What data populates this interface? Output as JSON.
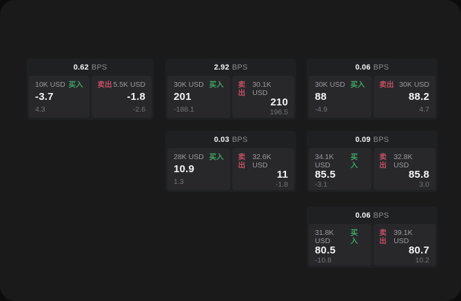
{
  "labels": {
    "bps_unit": "BPS",
    "buy": "买入",
    "sell": "卖出"
  },
  "colors": {
    "page_bg": "#0c0c0d",
    "window_bg": "#1a1a1b",
    "card_bg": "#1f2022",
    "panel_bg": "#28282b",
    "buy_green": "#3fa463",
    "sell_red": "#c14f63",
    "value_white": "#f5f5f6",
    "label_gray": "#9b9ca0",
    "sub_gray": "#747579",
    "header_gray": "#8b8c90"
  },
  "cards": [
    {
      "bps": "0.62",
      "col": 0,
      "row": 0,
      "buy": {
        "amount": "10K USD",
        "value": "-3.7",
        "sub": "4.3"
      },
      "sell": {
        "amount": "5.5K USD",
        "value": "-1.8",
        "sub": "-2.6"
      }
    },
    {
      "bps": "2.92",
      "col": 1,
      "row": 0,
      "buy": {
        "amount": "30K USD",
        "value": "201",
        "sub": "-188.1"
      },
      "sell": {
        "amount": "30.1K USD",
        "value": "210",
        "sub": "196.5"
      }
    },
    {
      "bps": "0.06",
      "col": 2,
      "row": 0,
      "buy": {
        "amount": "30K USD",
        "value": "88",
        "sub": "-4.9"
      },
      "sell": {
        "amount": "30K USD",
        "value": "88.2",
        "sub": "4.7"
      }
    },
    {
      "bps": "0.03",
      "col": 1,
      "row": 1,
      "buy": {
        "amount": "28K USD",
        "value": "10.9",
        "sub": "1.3"
      },
      "sell": {
        "amount": "32.6K USD",
        "value": "11",
        "sub": "-1.8"
      }
    },
    {
      "bps": "0.09",
      "col": 2,
      "row": 1,
      "buy": {
        "amount": "34.1K USD",
        "value": "85.5",
        "sub": "-3.1"
      },
      "sell": {
        "amount": "32.8K USD",
        "value": "85.8",
        "sub": "3.0"
      }
    },
    {
      "bps": "0.06",
      "col": 2,
      "row": 2,
      "buy": {
        "amount": "31.8K USD",
        "value": "80.5",
        "sub": "-10.8"
      },
      "sell": {
        "amount": "39.1K USD",
        "value": "80.7",
        "sub": "10.2"
      }
    }
  ]
}
